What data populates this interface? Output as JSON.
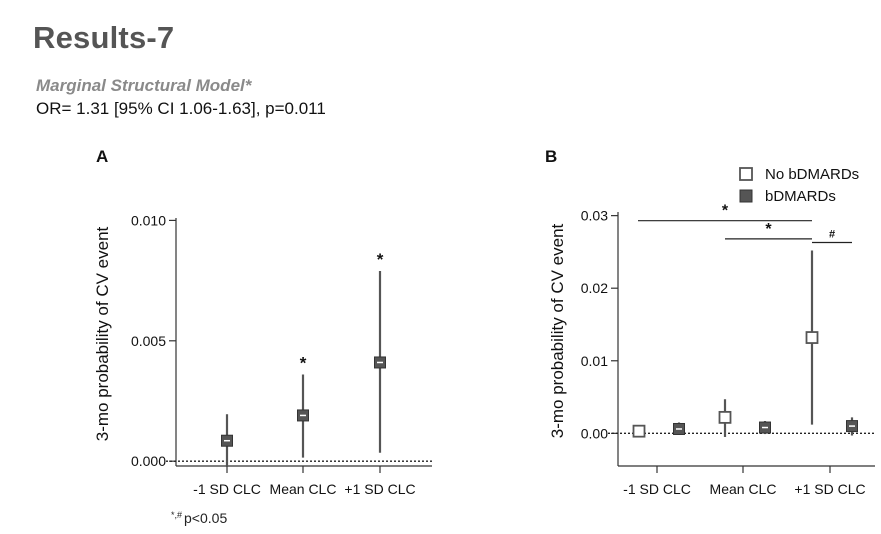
{
  "slide": {
    "title": "Results-7",
    "model_name": "Marginal Structural Model*",
    "model_result": "OR= 1.31 [95% CI 1.06-1.63], p=0.011"
  },
  "footnote": {
    "symbols": "*,#",
    "text": "p<0.05"
  },
  "chart_data": [
    {
      "panel": "A",
      "type": "scatter",
      "ylabel": "3-mo probability of CV event",
      "categories": [
        "-1 SD CLC",
        "Mean CLC",
        "+1 SD CLC"
      ],
      "ylim": [
        -0.0002,
        0.0101
      ],
      "yticks": [
        0.0,
        0.005,
        0.01
      ],
      "ytick_labels": [
        "0.000",
        "0.005",
        "0.010"
      ],
      "reference_line": 0.0,
      "grid": false,
      "series": [
        {
          "marker": "filled-square",
          "color": "#555555",
          "points": [
            {
              "category": "-1 SD CLC",
              "y": 0.00085,
              "lo": -0.0002,
              "hi": 0.00195,
              "annotation": ""
            },
            {
              "category": "Mean CLC",
              "y": 0.0019,
              "lo": 0.00015,
              "hi": 0.0036,
              "annotation": "*"
            },
            {
              "category": "+1 SD CLC",
              "y": 0.0041,
              "lo": 0.00035,
              "hi": 0.0079,
              "annotation": "*"
            }
          ]
        }
      ]
    },
    {
      "panel": "B",
      "type": "scatter",
      "ylabel": "3-mo probability of CV event",
      "categories": [
        "-1 SD CLC",
        "Mean CLC",
        "+1 SD CLC"
      ],
      "ylim": [
        -0.0045,
        0.0305
      ],
      "yticks": [
        0.0,
        0.01,
        0.02,
        0.03
      ],
      "ytick_labels": [
        "0.00",
        "0.01",
        "0.02",
        "0.03"
      ],
      "reference_line": 0.0,
      "grid": false,
      "legend_placement": "top-right",
      "series": [
        {
          "name": "No bDMARDs",
          "marker": "open-square",
          "color": "#555555",
          "points": [
            {
              "category": "-1 SD CLC",
              "y": 0.0003,
              "lo": 0.0,
              "hi": 0.0006
            },
            {
              "category": "Mean CLC",
              "y": 0.0022,
              "lo": -0.0005,
              "hi": 0.0047
            },
            {
              "category": "+1 SD CLC",
              "y": 0.0132,
              "lo": 0.0012,
              "hi": 0.0252
            }
          ]
        },
        {
          "name": "bDMARDs",
          "marker": "filled-square",
          "color": "#555555",
          "points": [
            {
              "category": "-1 SD CLC",
              "y": 0.0006,
              "lo": -0.0002,
              "hi": 0.0015
            },
            {
              "category": "Mean CLC",
              "y": 0.0008,
              "lo": -0.0001,
              "hi": 0.0017
            },
            {
              "category": "+1 SD CLC",
              "y": 0.001,
              "lo": -0.0003,
              "hi": 0.0022
            }
          ]
        }
      ],
      "brackets": [
        {
          "from": {
            "category": "-1 SD CLC",
            "series": "No bDMARDs"
          },
          "to": {
            "category": "+1 SD CLC",
            "series": "No bDMARDs"
          },
          "y": 0.0293,
          "label": "*"
        },
        {
          "from": {
            "category": "Mean CLC",
            "series": "No bDMARDs"
          },
          "to": {
            "category": "+1 SD CLC",
            "series": "No bDMARDs"
          },
          "y": 0.0268,
          "label": "*"
        },
        {
          "from": {
            "category": "+1 SD CLC",
            "series": "No bDMARDs"
          },
          "to": {
            "category": "+1 SD CLC",
            "series": "bDMARDs"
          },
          "y": 0.0263,
          "label": "#"
        }
      ]
    }
  ]
}
